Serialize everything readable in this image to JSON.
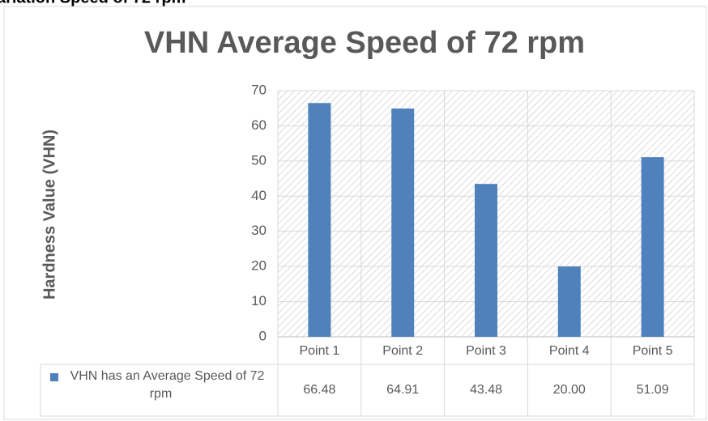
{
  "heading": "ariation Speed of 72 rpm",
  "chart_data": {
    "type": "bar",
    "title": "VHN Average Speed of 72 rpm",
    "y_label": "Hardness Value (VHN)",
    "categories": [
      "Point 1",
      "Point 2",
      "Point 3",
      "Point 4",
      "Point 5"
    ],
    "series": [
      {
        "name": "VHN has an Average Speed of 72 rpm",
        "color": "#4f81bd",
        "values": [
          66.48,
          64.91,
          43.48,
          20.0,
          51.09
        ],
        "value_labels": [
          "66.48",
          "64.91",
          "43.48",
          "20.00",
          "51.09"
        ]
      }
    ],
    "ylim": [
      0,
      70
    ],
    "yticks": [
      0,
      10,
      20,
      30,
      40,
      50,
      60,
      70
    ],
    "grid": true,
    "data_table": true
  }
}
